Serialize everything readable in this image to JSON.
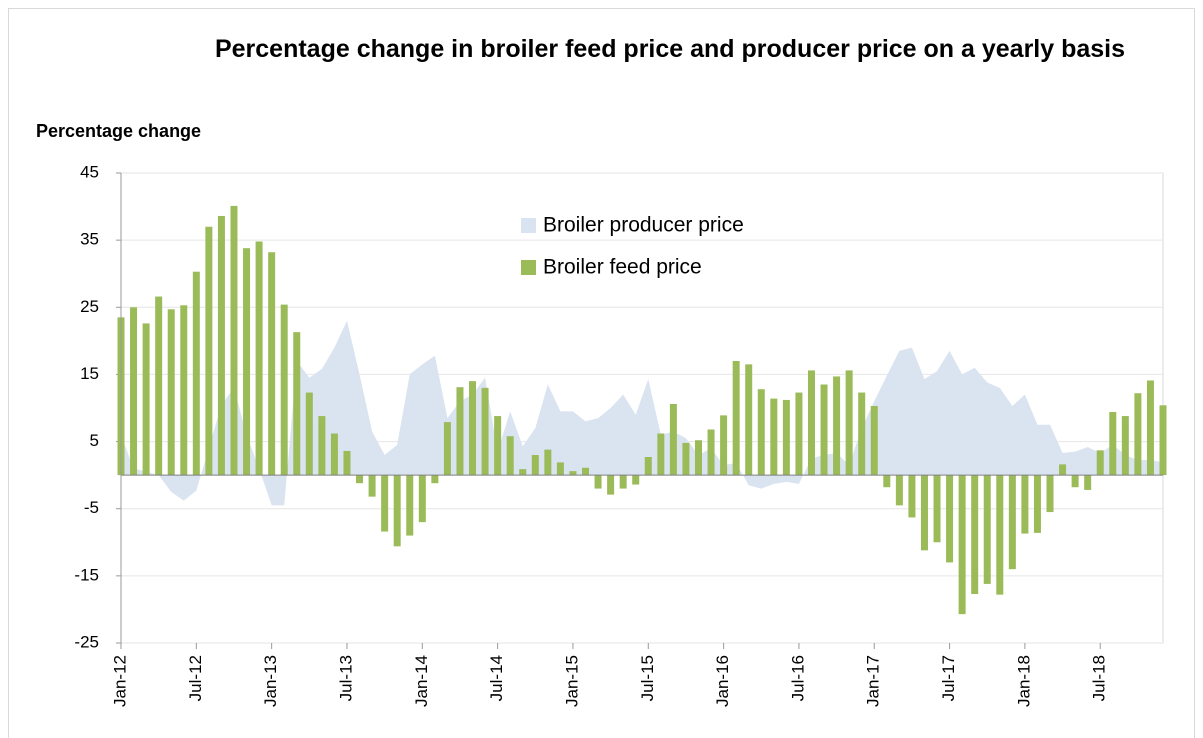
{
  "chart_data": {
    "type": "bar_area",
    "title": "Percentage change in broiler feed price and producer price on a yearly basis",
    "y_axis_label": "Percentage change",
    "categories": [
      "Jan-12",
      null,
      null,
      null,
      null,
      null,
      "Jul-12",
      null,
      null,
      null,
      null,
      null,
      "Jan-13",
      null,
      null,
      null,
      null,
      null,
      "Jul-13",
      null,
      null,
      null,
      null,
      null,
      "Jan-14",
      null,
      null,
      null,
      null,
      null,
      "Jul-14",
      null,
      null,
      null,
      null,
      null,
      "Jan-15",
      null,
      null,
      null,
      null,
      null,
      "Jul-15",
      null,
      null,
      null,
      null,
      null,
      "Jan-16",
      null,
      null,
      null,
      null,
      null,
      "Jul-16",
      null,
      null,
      null,
      null,
      null,
      "Jan-17",
      null,
      null,
      null,
      null,
      null,
      "Jul-17",
      null,
      null,
      null,
      null,
      null,
      "Jan-18",
      null,
      null,
      null,
      null,
      null,
      "Jul-18",
      null,
      null,
      null,
      null,
      null
    ],
    "series": [
      {
        "name": "Broiler producer price",
        "kind": "area",
        "color": "#dae3f0",
        "values": [
          6,
          1,
          0.5,
          0,
          -2.5,
          -3.8,
          -2.3,
          4,
          10.5,
          13,
          6,
          1,
          -4.5,
          -4.5,
          17,
          14.5,
          15.8,
          19,
          23,
          15,
          6.5,
          3,
          4.5,
          15,
          16.5,
          17.8,
          8.5,
          11,
          12,
          14.5,
          3.5,
          9.5,
          4.3,
          7,
          13.5,
          9.5,
          9.5,
          8,
          8.5,
          10,
          12,
          9,
          14.3,
          6,
          6.5,
          5.5,
          3,
          4,
          1.5,
          1.8,
          -1.5,
          -2,
          -1.3,
          -1,
          -1.3,
          2.5,
          3,
          3.3,
          1.5,
          7,
          11,
          14.8,
          18.5,
          19,
          14.3,
          15.5,
          18.5,
          15,
          16,
          13.8,
          13,
          10.3,
          12,
          7.5,
          7.5,
          3.3,
          3.5,
          4.2,
          3.3,
          4.5,
          3,
          2.2,
          2.3,
          1.9
        ]
      },
      {
        "name": "Broiler feed price",
        "kind": "bar",
        "color": "#9bbb59",
        "values": [
          23.5,
          25,
          22.6,
          26.6,
          24.7,
          25.3,
          30.3,
          37,
          38.6,
          40.1,
          33.8,
          34.8,
          33.2,
          25.4,
          21.3,
          12.3,
          8.8,
          6.2,
          3.6,
          -1.2,
          -3.2,
          -8.4,
          -10.6,
          -9,
          -7,
          -1.2,
          7.9,
          13.1,
          14,
          13,
          8.8,
          5.8,
          0.9,
          3,
          3.8,
          1.9,
          0.6,
          1.1,
          -2,
          -2.9,
          -2,
          -1.4,
          2.7,
          6.2,
          10.6,
          4.8,
          5.2,
          6.8,
          8.9,
          17,
          16.5,
          12.8,
          11.4,
          11.2,
          12.3,
          15.6,
          13.5,
          14.7,
          15.6,
          12.3,
          10.3,
          -1.8,
          -4.5,
          -6.3,
          -11.2,
          -10,
          -13,
          -20.7,
          -17.7,
          -16.2,
          -17.8,
          -14,
          -8.7,
          -8.6,
          -5.5,
          1.6,
          -1.8,
          -2.2,
          3.7,
          9.4,
          8.8,
          12.2,
          14.1,
          10.4
        ]
      }
    ],
    "ylim": [
      -25,
      45
    ],
    "yticks": [
      45,
      35,
      25,
      15,
      5,
      -5,
      -15,
      -25
    ],
    "grid": true
  }
}
